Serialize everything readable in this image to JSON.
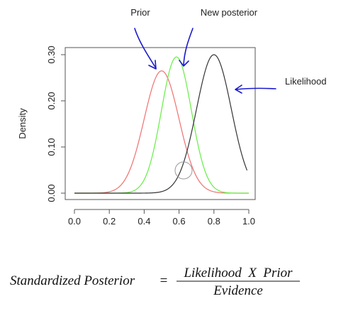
{
  "chart_data": {
    "type": "line",
    "ylabel": "Density",
    "xlim": [
      0,
      1
    ],
    "ylim": [
      0,
      0.3
    ],
    "x_ticks": [
      "0.0",
      "0.2",
      "0.4",
      "0.6",
      "0.8",
      "1.0"
    ],
    "y_ticks": [
      "0.00",
      "0.10",
      "0.20",
      "0.30"
    ],
    "grid": false,
    "series": [
      {
        "key": "prior",
        "color": "#f07070",
        "mean": 0.5,
        "sd": 0.1,
        "peak": 0.265
      },
      {
        "key": "posterior",
        "color": "#66ee44",
        "mean": 0.585,
        "sd": 0.086,
        "peak": 0.295
      },
      {
        "key": "likelihood",
        "color": "#333333",
        "mean": 0.8,
        "sd": 0.1,
        "peak": 0.3,
        "upper": 0.99
      }
    ]
  },
  "annotations": {
    "prior": "Prior",
    "new_posterior": "New posterior",
    "likelihood": "Likelihood",
    "arrow_color": "#1a1acc"
  },
  "formula": {
    "lhs": "Standardized Posterior",
    "equals": "=",
    "numerator": "Likelihood  X  Prior",
    "denominator": "Evidence"
  }
}
